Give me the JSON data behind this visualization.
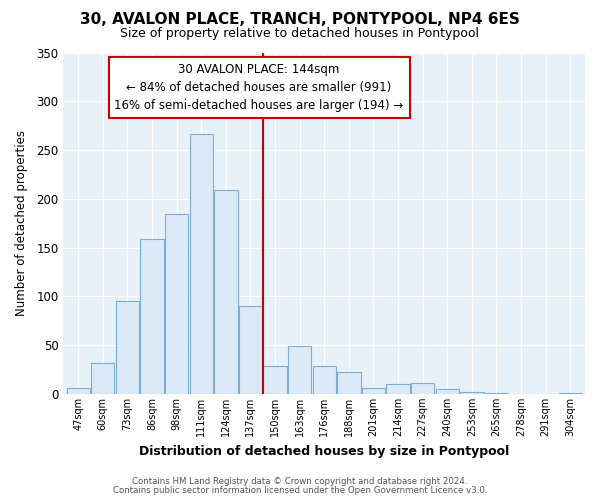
{
  "title": "30, AVALON PLACE, TRANCH, PONTYPOOL, NP4 6ES",
  "subtitle": "Size of property relative to detached houses in Pontypool",
  "xlabel": "Distribution of detached houses by size in Pontypool",
  "ylabel": "Number of detached properties",
  "bar_labels": [
    "47sqm",
    "60sqm",
    "73sqm",
    "86sqm",
    "98sqm",
    "111sqm",
    "124sqm",
    "137sqm",
    "150sqm",
    "163sqm",
    "176sqm",
    "188sqm",
    "201sqm",
    "214sqm",
    "227sqm",
    "240sqm",
    "253sqm",
    "265sqm",
    "278sqm",
    "291sqm",
    "304sqm"
  ],
  "bar_values": [
    6,
    32,
    95,
    159,
    184,
    266,
    209,
    90,
    29,
    49,
    29,
    22,
    6,
    10,
    11,
    5,
    2,
    1,
    0,
    0,
    1
  ],
  "bar_color": "#dce9f7",
  "bar_edge_color": "#7bafd4",
  "vline_color": "#cc0000",
  "vline_x": 7.5,
  "ylim": [
    0,
    350
  ],
  "yticks": [
    0,
    50,
    100,
    150,
    200,
    250,
    300,
    350
  ],
  "annotation_title": "30 AVALON PLACE: 144sqm",
  "annotation_line1": "← 84% of detached houses are smaller (991)",
  "annotation_line2": "16% of semi-detached houses are larger (194) →",
  "footer_line1": "Contains HM Land Registry data © Crown copyright and database right 2024.",
  "footer_line2": "Contains public sector information licensed under the Open Government Licence v3.0.",
  "background_color": "#ffffff",
  "plot_bg_color": "#e8f0f8",
  "grid_color": "#ffffff"
}
